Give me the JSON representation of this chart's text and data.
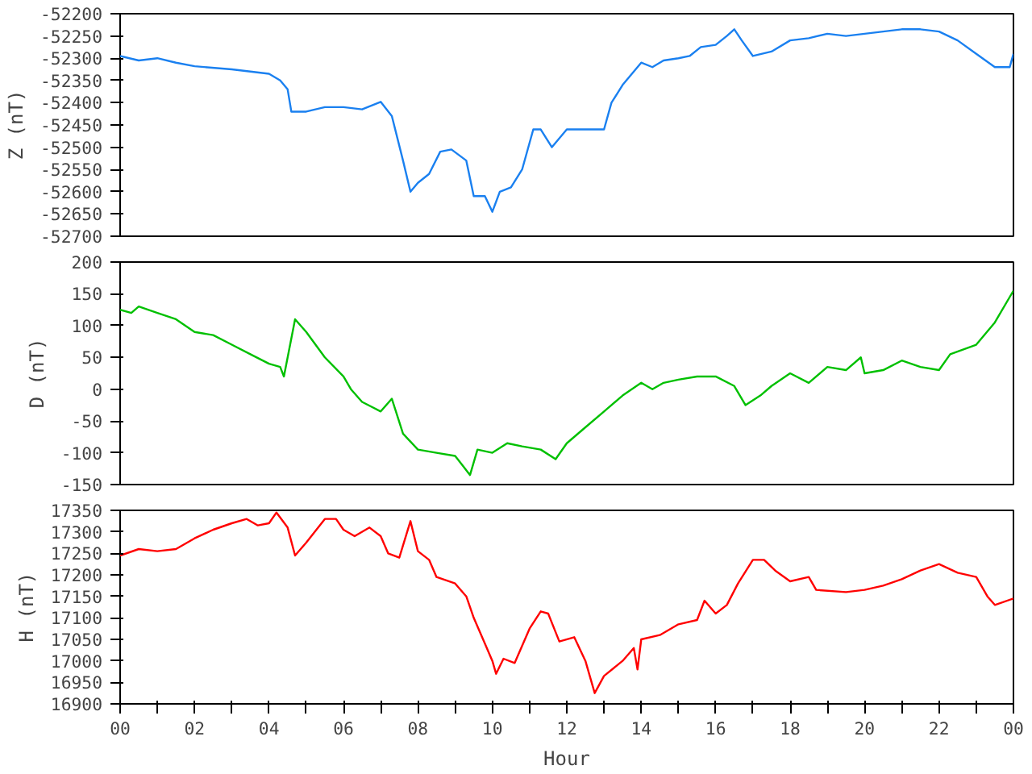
{
  "chart_data": [
    {
      "type": "line",
      "ylabel": "Z (nT)",
      "xlim": [
        0,
        24
      ],
      "ylim": [
        -52700,
        -52200
      ],
      "yticks": [
        -52700,
        -52650,
        -52600,
        -52550,
        -52500,
        -52450,
        -52400,
        -52350,
        -52300,
        -52250,
        -52200
      ],
      "tick_labels": "y",
      "grid": false,
      "series": [
        {
          "color": "#1a80f0",
          "x": [
            0,
            0.5,
            1,
            1.5,
            2,
            3,
            4,
            4.3,
            4.5,
            4.6,
            5,
            5.5,
            6,
            6.5,
            7,
            7.3,
            7.6,
            7.8,
            8,
            8.3,
            8.6,
            8.9,
            9.3,
            9.5,
            9.8,
            10,
            10.2,
            10.5,
            10.8,
            11.1,
            11.3,
            11.6,
            12,
            12.5,
            13,
            13.2,
            13.5,
            13.8,
            14,
            14.3,
            14.6,
            15,
            15.3,
            15.6,
            16,
            16.3,
            16.5,
            16.7,
            17,
            17.5,
            18,
            18.5,
            19,
            19.5,
            20,
            20.5,
            21,
            21.5,
            22,
            22.5,
            23,
            23.5,
            23.9,
            24
          ],
          "values": [
            -52295,
            -52305,
            -52300,
            -52310,
            -52318,
            -52325,
            -52335,
            -52350,
            -52370,
            -52420,
            -52420,
            -52410,
            -52410,
            -52415,
            -52398,
            -52430,
            -52530,
            -52600,
            -52580,
            -52560,
            -52510,
            -52505,
            -52530,
            -52610,
            -52610,
            -52645,
            -52600,
            -52590,
            -52550,
            -52460,
            -52460,
            -52500,
            -52460,
            -52460,
            -52460,
            -52400,
            -52360,
            -52330,
            -52310,
            -52320,
            -52305,
            -52300,
            -52295,
            -52275,
            -52270,
            -52250,
            -52235,
            -52260,
            -52295,
            -52285,
            -52260,
            -52255,
            -52245,
            -52250,
            -52245,
            -52240,
            -52235,
            -52235,
            -52240,
            -52260,
            -52290,
            -52320,
            -52320,
            -52290
          ]
        }
      ]
    },
    {
      "type": "line",
      "ylabel": "D (nT)",
      "xlim": [
        0,
        24
      ],
      "ylim": [
        -150,
        200
      ],
      "yticks": [
        -150,
        -100,
        -50,
        0,
        50,
        100,
        150,
        200
      ],
      "tick_labels": "y",
      "grid": false,
      "series": [
        {
          "color": "#00c000",
          "x": [
            0,
            0.3,
            0.5,
            1,
            1.5,
            2,
            2.5,
            3,
            3.5,
            4,
            4.3,
            4.4,
            4.7,
            5,
            5.5,
            6,
            6.2,
            6.5,
            7,
            7.3,
            7.6,
            8,
            8.5,
            9,
            9.2,
            9.4,
            9.6,
            10,
            10.4,
            10.8,
            11.3,
            11.7,
            12,
            12.5,
            13,
            13.5,
            14,
            14.3,
            14.6,
            15,
            15.5,
            16,
            16.5,
            16.8,
            17.2,
            17.5,
            18,
            18.5,
            19,
            19.5,
            19.9,
            20,
            20.5,
            21,
            21.5,
            22,
            22.3,
            23,
            23.5,
            24
          ],
          "values": [
            125,
            120,
            130,
            120,
            110,
            90,
            85,
            70,
            55,
            40,
            35,
            20,
            110,
            90,
            50,
            20,
            0,
            -20,
            -35,
            -15,
            -70,
            -95,
            -100,
            -105,
            -120,
            -135,
            -95,
            -100,
            -85,
            -90,
            -95,
            -110,
            -85,
            -60,
            -35,
            -10,
            10,
            0,
            10,
            15,
            20,
            20,
            5,
            -25,
            -10,
            5,
            25,
            10,
            35,
            30,
            50,
            25,
            30,
            45,
            35,
            30,
            55,
            70,
            105,
            155
          ]
        }
      ]
    },
    {
      "type": "line",
      "ylabel": "H (nT)",
      "xlabel": "Hour",
      "xlim": [
        0,
        24
      ],
      "ylim": [
        16900,
        17350
      ],
      "yticks": [
        16900,
        16950,
        17000,
        17050,
        17100,
        17150,
        17200,
        17250,
        17300,
        17350
      ],
      "xticks": [
        {
          "value": 0,
          "label": "00"
        },
        {
          "value": 1,
          "label": null
        },
        {
          "value": 2,
          "label": "02"
        },
        {
          "value": 3,
          "label": null
        },
        {
          "value": 4,
          "label": "04"
        },
        {
          "value": 5,
          "label": null
        },
        {
          "value": 6,
          "label": "06"
        },
        {
          "value": 7,
          "label": null
        },
        {
          "value": 8,
          "label": "08"
        },
        {
          "value": 9,
          "label": null
        },
        {
          "value": 10,
          "label": "10"
        },
        {
          "value": 11,
          "label": null
        },
        {
          "value": 12,
          "label": "12"
        },
        {
          "value": 13,
          "label": null
        },
        {
          "value": 14,
          "label": "14"
        },
        {
          "value": 15,
          "label": null
        },
        {
          "value": 16,
          "label": "16"
        },
        {
          "value": 17,
          "label": null
        },
        {
          "value": 18,
          "label": "18"
        },
        {
          "value": 19,
          "label": null
        },
        {
          "value": 20,
          "label": "20"
        },
        {
          "value": 21,
          "label": null
        },
        {
          "value": 22,
          "label": "22"
        },
        {
          "value": 23,
          "label": null
        },
        {
          "value": 24,
          "label": "00"
        }
      ],
      "grid": false,
      "series": [
        {
          "color": "#ff0000",
          "x": [
            0,
            0.5,
            1,
            1.5,
            2,
            2.5,
            3,
            3.4,
            3.7,
            4,
            4.2,
            4.5,
            4.7,
            5,
            5.5,
            5.8,
            6,
            6.3,
            6.7,
            7,
            7.2,
            7.5,
            7.8,
            8,
            8.3,
            8.5,
            9,
            9.3,
            9.5,
            9.8,
            10,
            10.1,
            10.3,
            10.6,
            11,
            11.3,
            11.5,
            11.8,
            12.2,
            12.5,
            12.75,
            13,
            13.5,
            13.8,
            13.9,
            14,
            14.5,
            15,
            15.5,
            15.7,
            16,
            16.3,
            16.6,
            17,
            17.3,
            17.6,
            18,
            18.5,
            18.7,
            19.5,
            20,
            20.5,
            21,
            21.5,
            22,
            22.5,
            23,
            23.3,
            23.5,
            24
          ],
          "values": [
            17245,
            17260,
            17255,
            17260,
            17285,
            17305,
            17320,
            17330,
            17315,
            17320,
            17345,
            17310,
            17245,
            17275,
            17330,
            17330,
            17305,
            17290,
            17310,
            17290,
            17250,
            17240,
            17325,
            17255,
            17235,
            17195,
            17180,
            17150,
            17100,
            17040,
            17000,
            16970,
            17005,
            16995,
            17075,
            17115,
            17110,
            17045,
            17055,
            17000,
            16925,
            16965,
            17000,
            17030,
            16980,
            17050,
            17060,
            17085,
            17095,
            17140,
            17110,
            17130,
            17180,
            17235,
            17235,
            17210,
            17185,
            17195,
            17165,
            17160,
            17165,
            17175,
            17190,
            17210,
            17225,
            17205,
            17195,
            17150,
            17130,
            17145
          ]
        }
      ]
    }
  ]
}
